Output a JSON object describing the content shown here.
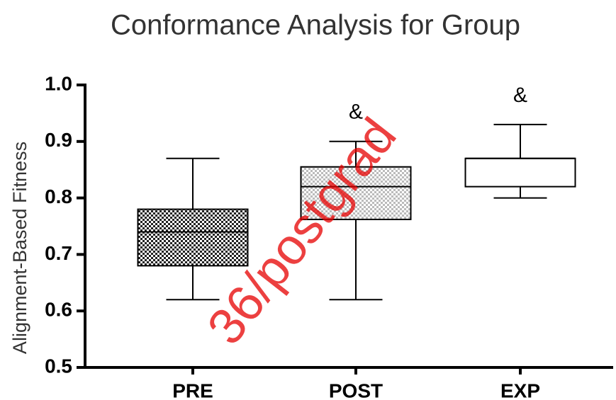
{
  "chart_data": {
    "type": "box",
    "title": "Conformance Analysis for Group",
    "ylabel": "Alignment-Based Fitness",
    "watermark": "36/postgrad",
    "categories": [
      "PRE",
      "POST",
      "EXP"
    ],
    "boxes": [
      {
        "min": 0.62,
        "q1": 0.68,
        "median": 0.74,
        "q3": 0.78,
        "max": 0.87
      },
      {
        "min": 0.62,
        "q1": 0.762,
        "median": 0.82,
        "q3": 0.855,
        "max": 0.9
      },
      {
        "min": 0.8,
        "q1": 0.82,
        "median": 0.87,
        "q3": 0.87,
        "max": 0.93
      }
    ],
    "patterns": [
      "dense",
      "light",
      "none"
    ],
    "annotations": [
      null,
      "&",
      "&"
    ],
    "ylim": [
      0.5,
      1.0
    ],
    "yticks": [
      0.5,
      0.6,
      0.7,
      0.8,
      0.9,
      {
        "value": 1.0,
        "label": "1.0"
      }
    ]
  }
}
